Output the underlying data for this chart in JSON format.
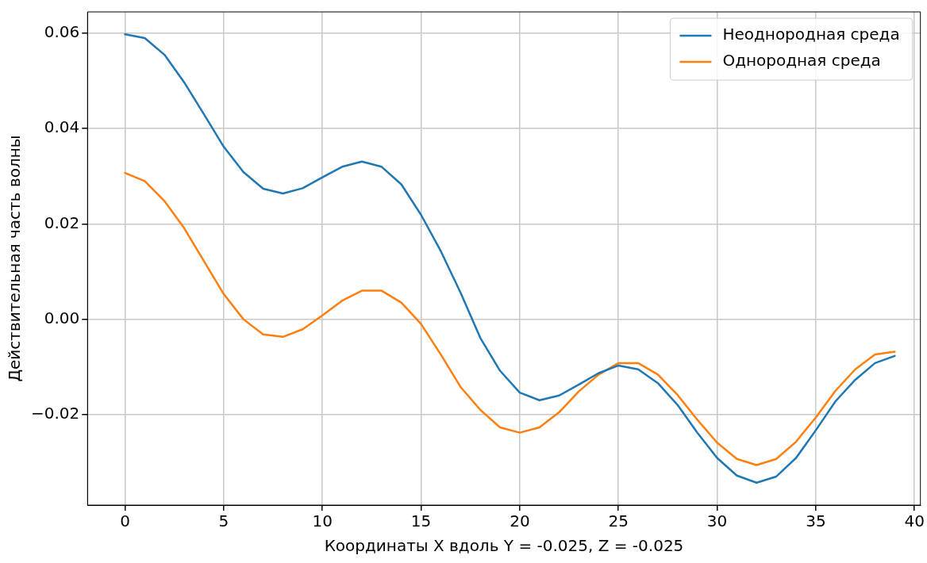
{
  "chart_data": {
    "type": "line",
    "xlabel": "Координаты X вдоль Y = -0.025, Z = -0.025",
    "ylabel": "Действительная часть волны",
    "x": [
      0,
      1,
      2,
      3,
      4,
      5,
      6,
      7,
      8,
      9,
      10,
      11,
      12,
      13,
      14,
      15,
      16,
      17,
      18,
      19,
      20,
      21,
      22,
      23,
      24,
      25,
      26,
      27,
      28,
      29,
      30,
      31,
      32,
      33,
      34,
      35,
      36,
      37,
      38,
      39
    ],
    "series": [
      {
        "name": "Неоднородная среда",
        "color": "#1f77b4",
        "values": [
          0.0598,
          0.059,
          0.0555,
          0.0497,
          0.043,
          0.0362,
          0.0309,
          0.0274,
          0.0264,
          0.0275,
          0.0298,
          0.032,
          0.0331,
          0.032,
          0.0283,
          0.0219,
          0.0143,
          0.0056,
          -0.0039,
          -0.0108,
          -0.0154,
          -0.017,
          -0.016,
          -0.0137,
          -0.0113,
          -0.0097,
          -0.0105,
          -0.0134,
          -0.018,
          -0.0238,
          -0.0291,
          -0.0328,
          -0.0343,
          -0.033,
          -0.0291,
          -0.0233,
          -0.0172,
          -0.0127,
          -0.0092,
          -0.0077
        ]
      },
      {
        "name": "Однородная среда",
        "color": "#ff7f0e",
        "values": [
          0.0307,
          0.029,
          0.0248,
          0.0191,
          0.0122,
          0.0053,
          0.0,
          -0.0032,
          -0.0037,
          -0.0021,
          0.0008,
          0.0039,
          0.006,
          0.006,
          0.0035,
          -0.001,
          -0.0074,
          -0.0142,
          -0.019,
          -0.0227,
          -0.0238,
          -0.0227,
          -0.0195,
          -0.0151,
          -0.0116,
          -0.0092,
          -0.0092,
          -0.0116,
          -0.0159,
          -0.0211,
          -0.0259,
          -0.0293,
          -0.0306,
          -0.0293,
          -0.0257,
          -0.0206,
          -0.015,
          -0.0105,
          -0.0074,
          -0.0068
        ]
      }
    ],
    "xlim": [
      -1.9,
      40.3
    ],
    "xticks": [
      0,
      5,
      10,
      15,
      20,
      25,
      30,
      35,
      40
    ],
    "ylim": [
      -0.039,
      0.0645
    ],
    "yticks": [
      {
        "value": -0.02,
        "label": "−0.02"
      },
      {
        "value": 0,
        "label": "0.00"
      },
      {
        "value": 0.02,
        "label": "0.02"
      },
      {
        "value": 0.04,
        "label": "0.04"
      },
      {
        "value": 0.06,
        "label": "0.06"
      }
    ],
    "grid": true,
    "legend": "top right",
    "marker": "none",
    "line_style": "solid"
  }
}
